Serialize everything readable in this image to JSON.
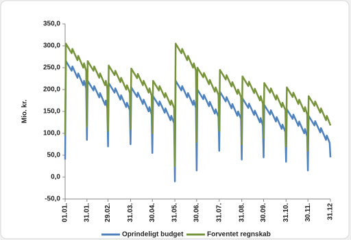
{
  "chart_data": {
    "type": "line",
    "y_label": "Mio. kr.",
    "x": [
      1,
      2,
      10,
      11,
      18,
      19,
      26,
      27,
      30,
      31,
      32,
      40,
      41,
      48,
      49,
      56,
      57,
      59,
      60,
      61,
      69,
      70,
      77,
      78,
      85,
      86,
      90,
      91,
      92,
      100,
      101,
      108,
      109,
      116,
      117,
      120,
      121,
      122,
      130,
      131,
      138,
      139,
      146,
      147,
      151,
      152,
      153,
      161,
      162,
      169,
      170,
      177,
      178,
      181,
      182,
      183,
      191,
      192,
      199,
      200,
      207,
      208,
      212,
      213,
      214,
      222,
      223,
      230,
      231,
      238,
      239,
      243,
      244,
      245,
      253,
      254,
      261,
      262,
      269,
      270,
      273,
      274,
      275,
      283,
      284,
      291,
      292,
      299,
      300,
      304,
      305,
      306,
      314,
      315,
      322,
      323,
      330,
      331,
      334,
      335,
      336,
      344,
      345,
      352,
      353,
      360,
      361,
      365,
      366
    ],
    "series": [
      {
        "name": "Oprindeligt budget",
        "color": "#4f81bd",
        "values": [
          40,
          265,
          243,
          253,
          227,
          237,
          210,
          220,
          203,
          85,
          220,
          198,
          208,
          182,
          192,
          165,
          175,
          158,
          70,
          215,
          193,
          203,
          177,
          187,
          160,
          170,
          153,
          75,
          205,
          183,
          193,
          167,
          177,
          150,
          160,
          143,
          55,
          185,
          163,
          173,
          147,
          157,
          130,
          140,
          123,
          -10,
          220,
          198,
          208,
          182,
          192,
          165,
          175,
          158,
          15,
          200,
          178,
          188,
          162,
          172,
          145,
          155,
          138,
          60,
          195,
          173,
          183,
          157,
          167,
          140,
          150,
          133,
          40,
          180,
          158,
          168,
          142,
          152,
          125,
          135,
          118,
          45,
          165,
          143,
          153,
          127,
          137,
          110,
          120,
          103,
          35,
          155,
          133,
          143,
          117,
          127,
          100,
          110,
          93,
          15,
          140,
          118,
          128,
          102,
          112,
          85,
          95,
          78,
          45
        ]
      },
      {
        "name": "Forventet regnskab",
        "color": "#77933c",
        "values": [
          95,
          305,
          283,
          293,
          267,
          277,
          250,
          260,
          243,
          115,
          265,
          243,
          253,
          227,
          237,
          210,
          220,
          203,
          105,
          255,
          233,
          243,
          217,
          227,
          200,
          210,
          193,
          110,
          248,
          226,
          236,
          210,
          220,
          193,
          203,
          186,
          100,
          220,
          198,
          208,
          182,
          192,
          165,
          175,
          158,
          25,
          305,
          283,
          293,
          267,
          277,
          250,
          260,
          243,
          80,
          250,
          228,
          238,
          212,
          222,
          195,
          205,
          188,
          105,
          245,
          223,
          233,
          207,
          217,
          190,
          200,
          183,
          75,
          230,
          208,
          218,
          192,
          202,
          175,
          185,
          168,
          90,
          215,
          193,
          203,
          177,
          187,
          160,
          170,
          153,
          70,
          205,
          183,
          193,
          167,
          177,
          150,
          160,
          143,
          60,
          185,
          163,
          173,
          147,
          157,
          130,
          140,
          123,
          118
        ]
      }
    ],
    "xlim": [
      1,
      366
    ],
    "xticks": [
      {
        "value": 1,
        "label": "01.01."
      },
      {
        "value": 31,
        "label": "31.01."
      },
      {
        "value": 60,
        "label": "29.02."
      },
      {
        "value": 91,
        "label": "31.03."
      },
      {
        "value": 121,
        "label": "30.04."
      },
      {
        "value": 152,
        "label": "31.05."
      },
      {
        "value": 182,
        "label": "30.06."
      },
      {
        "value": 213,
        "label": "31.07."
      },
      {
        "value": 244,
        "label": "31.08."
      },
      {
        "value": 274,
        "label": "30.09."
      },
      {
        "value": 305,
        "label": "31.10."
      },
      {
        "value": 335,
        "label": "30.11."
      },
      {
        "value": 366,
        "label": "31.12"
      }
    ],
    "ylim": [
      -50,
      350
    ],
    "yticks": [
      {
        "value": -50,
        "label": "-50,0"
      },
      {
        "value": 0,
        "label": "0,0"
      },
      {
        "value": 50,
        "label": "50,0"
      },
      {
        "value": 100,
        "label": "100,0"
      },
      {
        "value": 150,
        "label": "150,0"
      },
      {
        "value": 200,
        "label": "200,0"
      },
      {
        "value": 250,
        "label": "250,0"
      },
      {
        "value": 300,
        "label": "300,0"
      },
      {
        "value": 350,
        "label": "350,0"
      }
    ],
    "grid": false,
    "legend": "bottom"
  }
}
